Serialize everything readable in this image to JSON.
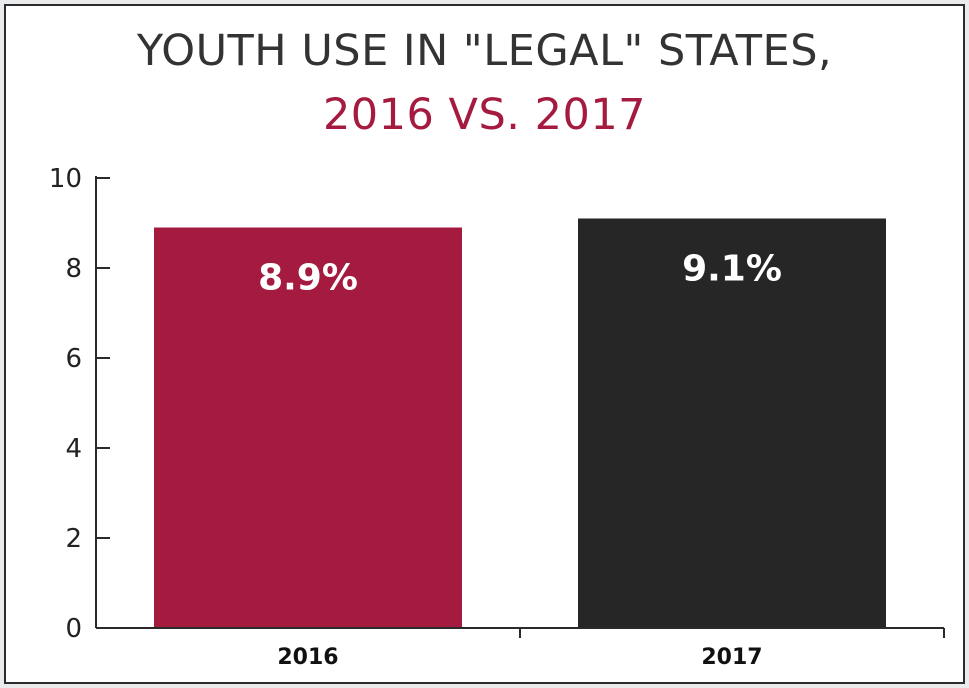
{
  "chart_data": {
    "type": "bar",
    "title_line1": "YOUTH USE IN \"LEGAL\" STATES,",
    "title_line2": "2016 VS. 2017",
    "categories": [
      "2016",
      "2017"
    ],
    "values": [
      8.9,
      9.1
    ],
    "data_labels": [
      "8.9%",
      "9.1%"
    ],
    "bar_colors": [
      "#a51a3f",
      "#262626"
    ],
    "title_color_line1": "#333333",
    "title_color_line2": "#a51a3f",
    "ylim": [
      0,
      10
    ],
    "yticks": [
      0,
      2,
      4,
      6,
      8,
      10
    ],
    "xlabel": "",
    "ylabel": "",
    "grid": false
  }
}
